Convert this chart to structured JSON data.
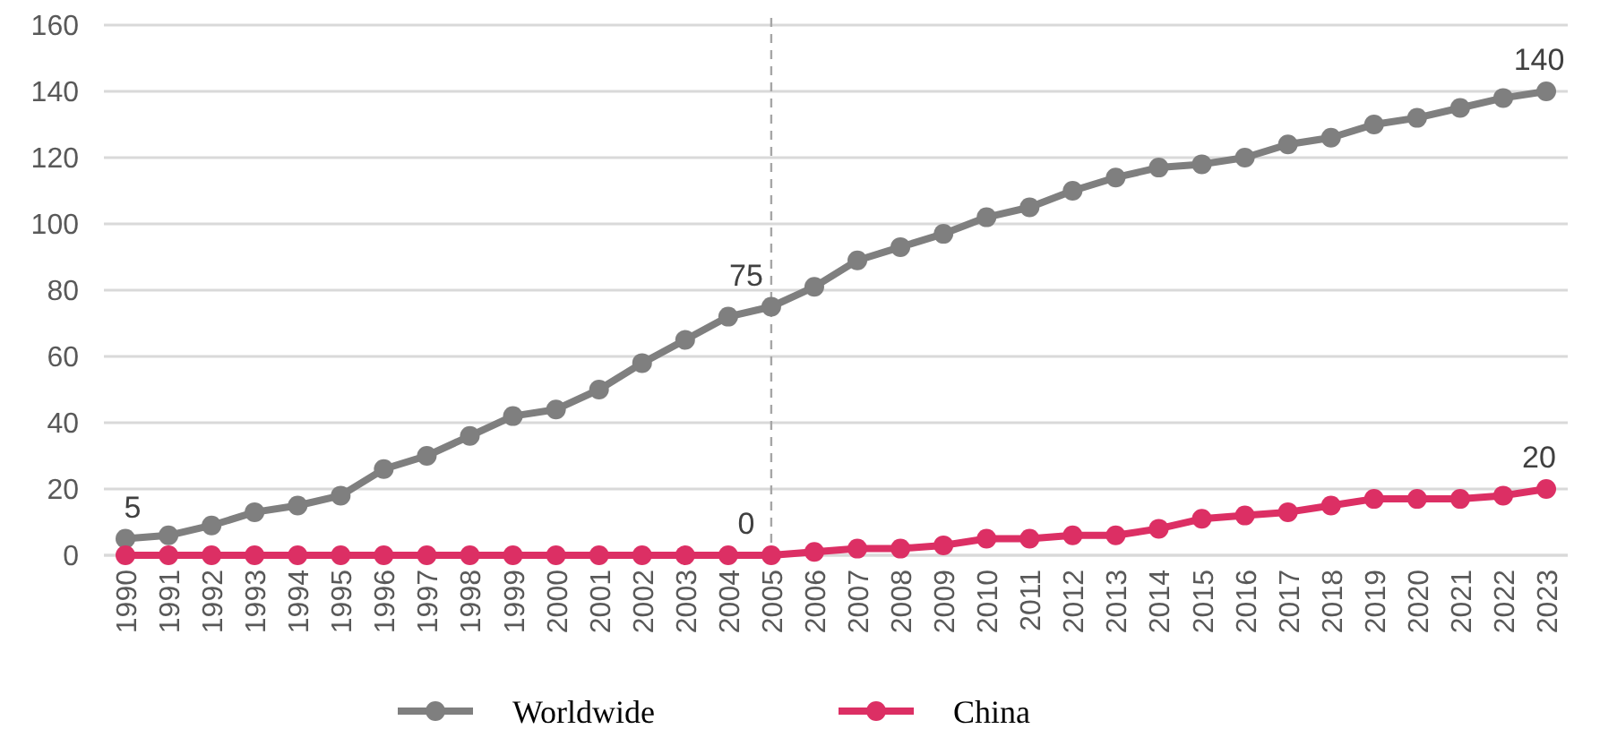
{
  "chart_data": {
    "type": "line",
    "categories": [
      "1990",
      "1991",
      "1992",
      "1993",
      "1994",
      "1995",
      "1996",
      "1997",
      "1998",
      "1999",
      "2000",
      "2001",
      "2002",
      "2003",
      "2004",
      "2005",
      "2006",
      "2007",
      "2008",
      "2009",
      "2010",
      "2011",
      "2012",
      "2013",
      "2014",
      "2015",
      "2016",
      "2017",
      "2018",
      "2019",
      "2020",
      "2021",
      "2022",
      "2023"
    ],
    "series": [
      {
        "name": "Worldwide",
        "color": "#7f7f7f",
        "values": [
          5,
          6,
          9,
          13,
          15,
          18,
          26,
          30,
          36,
          42,
          44,
          50,
          58,
          65,
          72,
          75,
          81,
          89,
          93,
          97,
          102,
          105,
          110,
          114,
          117,
          118,
          120,
          124,
          126,
          130,
          132,
          135,
          138,
          140
        ],
        "value_labels": [
          "5",
          null,
          null,
          null,
          null,
          null,
          null,
          null,
          null,
          null,
          null,
          null,
          null,
          null,
          null,
          "75",
          null,
          null,
          null,
          null,
          null,
          null,
          null,
          null,
          null,
          null,
          null,
          null,
          null,
          null,
          null,
          null,
          null,
          "140"
        ]
      },
      {
        "name": "China",
        "color": "#dc2f64",
        "values": [
          0,
          0,
          0,
          0,
          0,
          0,
          0,
          0,
          0,
          0,
          0,
          0,
          0,
          0,
          0,
          0,
          1,
          2,
          2,
          3,
          5,
          5,
          6,
          6,
          8,
          11,
          12,
          13,
          15,
          17,
          17,
          17,
          18,
          20
        ],
        "value_labels": [
          null,
          null,
          null,
          null,
          null,
          null,
          null,
          null,
          null,
          null,
          null,
          null,
          null,
          null,
          null,
          "0",
          null,
          null,
          null,
          null,
          null,
          null,
          null,
          null,
          null,
          null,
          null,
          null,
          null,
          null,
          null,
          null,
          null,
          "20"
        ]
      }
    ],
    "ylim": [
      0,
      160
    ],
    "yticks": [
      0,
      20,
      40,
      60,
      80,
      100,
      120,
      140,
      160
    ],
    "grid": "y",
    "legend": "bottom",
    "marker": "circle",
    "line_style": "solid",
    "ref_lines": [
      {
        "axis": "x",
        "value": "2005",
        "color": "#a6a6a6",
        "line_style": "dashed"
      }
    ]
  }
}
